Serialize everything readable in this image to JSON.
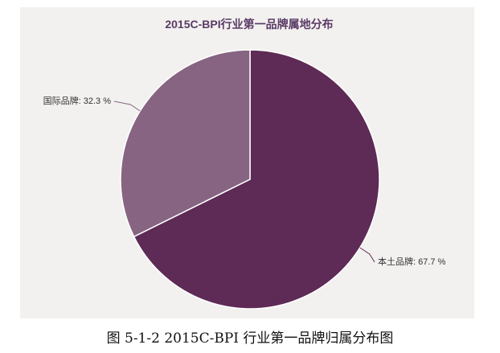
{
  "chart_data": {
    "type": "pie",
    "title": "2015C-BPI行业第一品牌属地分布",
    "slices": [
      {
        "label": "本土品牌",
        "value": 67.7,
        "display": "本土品牌: 67.7 %",
        "color": "#5e2a56"
      },
      {
        "label": "国际品牌",
        "value": 32.3,
        "display": "国际品牌: 32.3 %",
        "color": "#866482"
      }
    ]
  },
  "caption": "图 5-1-2 2015C-BPI 行业第一品牌归属分布图"
}
